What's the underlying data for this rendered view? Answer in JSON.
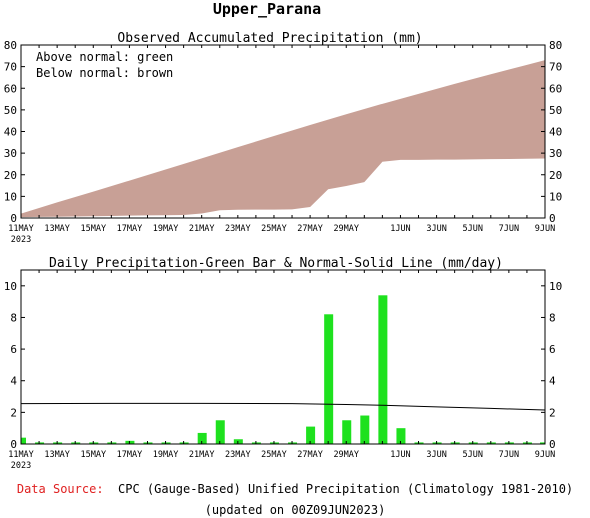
{
  "page_title": "Upper_Parana",
  "footer": {
    "source_label": "Data Source:",
    "source_text": "CPC (Gauge-Based) Unified Precipitation (Climatology 1981-2010)",
    "updated": "(updated on 00Z09JUN2023)"
  },
  "colors": {
    "normal_fill": "#c8a096",
    "observed_fill": "#ffffff",
    "bar_green": "#1ee11e",
    "line": "#000000",
    "source_red": "#e02020"
  },
  "x_ticks": [
    {
      "day": 0,
      "label": "11MAY",
      "sub": "2023"
    },
    {
      "day": 2,
      "label": "13MAY"
    },
    {
      "day": 4,
      "label": "15MAY"
    },
    {
      "day": 6,
      "label": "17MAY"
    },
    {
      "day": 8,
      "label": "19MAY"
    },
    {
      "day": 10,
      "label": "21MAY"
    },
    {
      "day": 12,
      "label": "23MAY"
    },
    {
      "day": 14,
      "label": "25MAY"
    },
    {
      "day": 16,
      "label": "27MAY"
    },
    {
      "day": 18,
      "label": "29MAY"
    },
    {
      "day": 21,
      "label": "1JUN"
    },
    {
      "day": 23,
      "label": "3JUN"
    },
    {
      "day": 25,
      "label": "5JUN"
    },
    {
      "day": 27,
      "label": "7JUN"
    },
    {
      "day": 29,
      "label": "9JUN"
    }
  ],
  "chart_data": [
    {
      "type": "area",
      "title": "Observed Accumulated Precipitation (mm)",
      "legend_lines": [
        "Above normal: green",
        "Below normal: brown"
      ],
      "xlim": [
        0,
        29
      ],
      "ylim": [
        0,
        80
      ],
      "y_ticks": [
        0,
        10,
        20,
        30,
        40,
        50,
        60,
        70,
        80
      ],
      "series": [
        {
          "name": "normal",
          "x": [
            0,
            2,
            4,
            6,
            8,
            10,
            12,
            14,
            16,
            18,
            20,
            22,
            24,
            26,
            28,
            29
          ],
          "values": [
            2,
            7.2,
            12.2,
            17.3,
            22.4,
            27.6,
            32.8,
            37.9,
            43.0,
            48.0,
            52.8,
            57.4,
            62.0,
            66.5,
            70.8,
            73
          ]
        },
        {
          "name": "observed",
          "x": [
            0,
            1,
            2,
            3,
            4,
            5,
            6,
            7,
            8,
            9,
            10,
            11,
            12,
            13,
            14,
            15,
            16,
            17,
            18,
            19,
            20,
            21,
            22,
            23,
            24,
            25,
            26,
            27,
            28,
            29
          ],
          "values": [
            0.4,
            0.5,
            0.6,
            0.7,
            0.8,
            0.9,
            1.1,
            1.2,
            1.3,
            1.4,
            2.1,
            3.6,
            3.8,
            3.9,
            3.9,
            4.0,
            5.1,
            13.3,
            14.8,
            16.6,
            26.0,
            26.9,
            26.9,
            27.0,
            27.0,
            27.1,
            27.2,
            27.3,
            27.4,
            27.5
          ]
        }
      ]
    },
    {
      "type": "bar",
      "title": "Daily Precipitation-Green Bar & Normal-Solid Line (mm/day)",
      "xlim": [
        0,
        29
      ],
      "ylim": [
        0,
        11
      ],
      "y_ticks": [
        0,
        2,
        4,
        6,
        8,
        10
      ],
      "series": [
        {
          "name": "daily",
          "x": [
            0,
            1,
            2,
            3,
            4,
            5,
            6,
            7,
            8,
            9,
            10,
            11,
            12,
            13,
            14,
            15,
            16,
            17,
            18,
            19,
            20,
            21,
            22,
            23,
            24,
            25,
            26,
            27,
            28,
            29
          ],
          "values": [
            0.4,
            0.1,
            0.1,
            0.1,
            0.1,
            0.1,
            0.2,
            0.1,
            0.1,
            0.1,
            0.7,
            1.5,
            0.3,
            0.1,
            0.1,
            0.1,
            1.1,
            8.2,
            1.5,
            1.8,
            9.4,
            1.0,
            0.1,
            0.1,
            0.1,
            0.1,
            0.1,
            0.1,
            0.1,
            0.1
          ]
        },
        {
          "name": "normal",
          "x": [
            0,
            5,
            10,
            15,
            18,
            20,
            23,
            26,
            29
          ],
          "values": [
            2.55,
            2.57,
            2.57,
            2.55,
            2.5,
            2.45,
            2.35,
            2.25,
            2.15
          ]
        }
      ]
    }
  ]
}
